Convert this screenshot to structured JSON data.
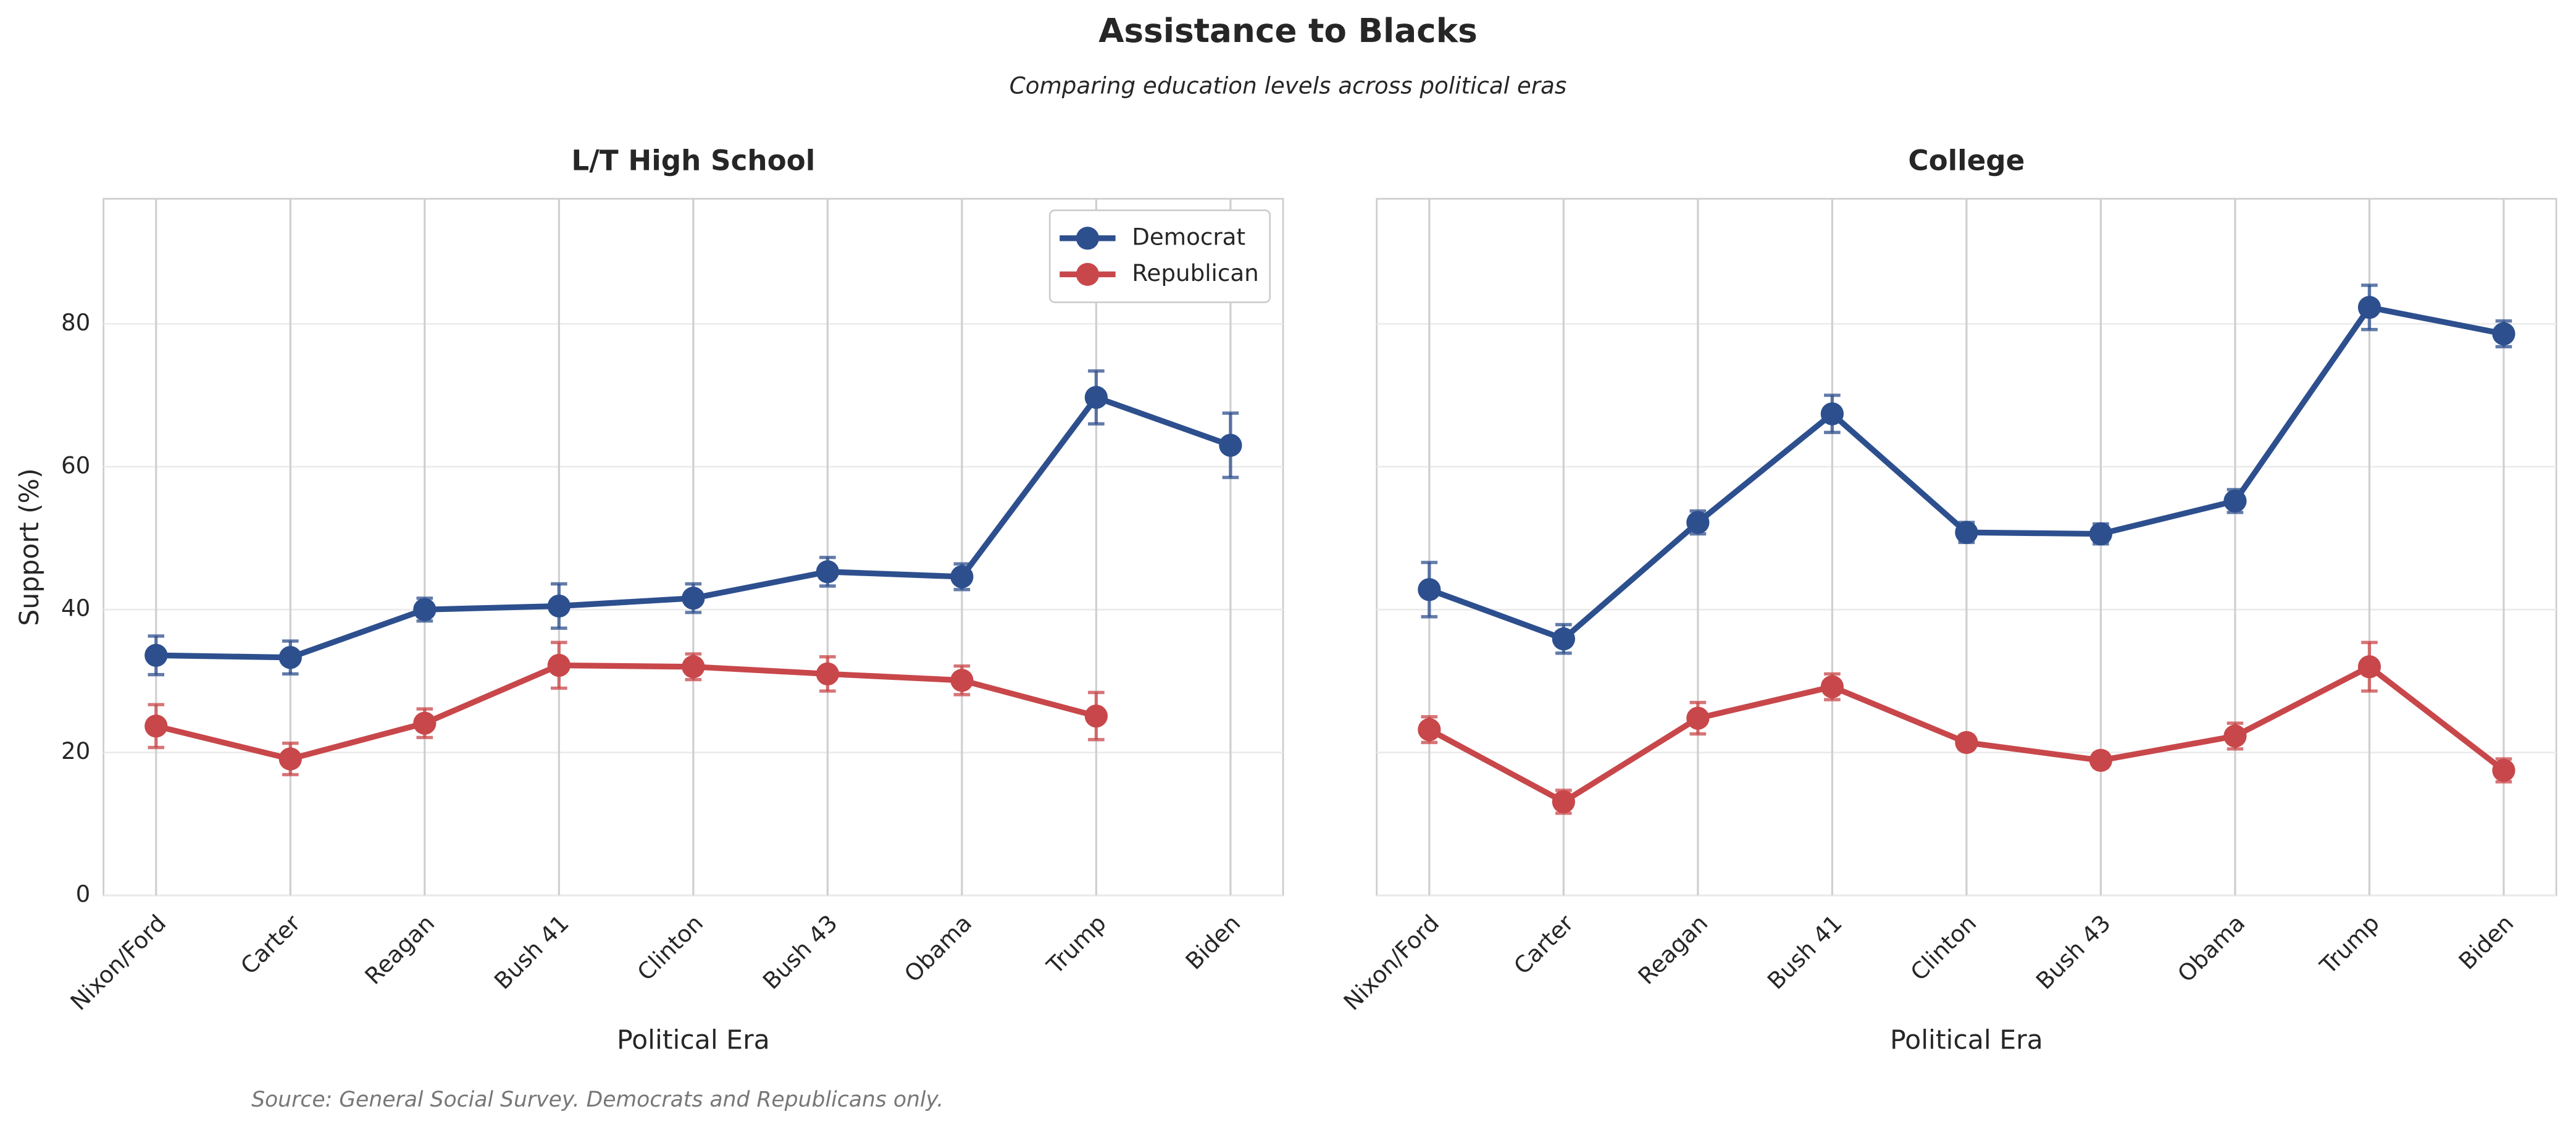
{
  "title": "Assistance to Blacks",
  "subtitle": "Comparing education levels across political eras",
  "source": "Source: General Social Survey. Democrats and Republicans only.",
  "chart_data": [
    {
      "type": "line",
      "title": "L/T High School",
      "xlabel": "Political Era",
      "ylabel": "Support (%)",
      "categories": [
        "Nixon/Ford",
        "Carter",
        "Reagan",
        "Bush 41",
        "Clinton",
        "Bush 43",
        "Obama",
        "Trump",
        "Biden"
      ],
      "ylim": [
        0,
        97.5
      ],
      "yticks": [
        0,
        20,
        40,
        60,
        80
      ],
      "ytick_labels": true,
      "grid": true,
      "legend": "upper right",
      "series": [
        {
          "name": "Democrat",
          "color": "#2d4f8e",
          "values": [
            33.6,
            33.3,
            40.0,
            40.5,
            41.6,
            45.3,
            44.6,
            69.7,
            63.0
          ],
          "errors": [
            2.7,
            2.3,
            1.6,
            3.1,
            2.0,
            2.0,
            1.8,
            3.7,
            4.5
          ]
        },
        {
          "name": "Republican",
          "color": "#c8474a",
          "values": [
            23.7,
            19.1,
            24.1,
            32.2,
            32.0,
            31.0,
            30.1,
            25.1,
            null
          ],
          "errors": [
            3.0,
            2.2,
            2.0,
            3.2,
            1.8,
            2.4,
            2.0,
            3.3,
            null
          ]
        }
      ]
    },
    {
      "type": "line",
      "title": "College",
      "xlabel": "Political Era",
      "categories": [
        "Nixon/Ford",
        "Carter",
        "Reagan",
        "Bush 41",
        "Clinton",
        "Bush 43",
        "Obama",
        "Trump",
        "Biden"
      ],
      "ylim": [
        0,
        97.5
      ],
      "yticks": [
        0,
        20,
        40,
        60,
        80
      ],
      "ytick_labels": false,
      "grid": true,
      "series": [
        {
          "color": "#2d4f8e",
          "values": [
            42.8,
            35.9,
            52.2,
            67.4,
            50.8,
            50.6,
            55.2,
            82.3,
            78.6
          ],
          "errors": [
            3.8,
            2.0,
            1.6,
            2.6,
            1.4,
            1.4,
            1.6,
            3.1,
            1.8
          ]
        },
        {
          "color": "#c8474a",
          "values": [
            23.2,
            13.1,
            24.8,
            29.2,
            21.4,
            18.9,
            22.3,
            32.0,
            17.5
          ],
          "errors": [
            1.8,
            1.6,
            2.2,
            1.8,
            1.0,
            1.0,
            1.8,
            3.4,
            1.6
          ]
        }
      ]
    }
  ]
}
